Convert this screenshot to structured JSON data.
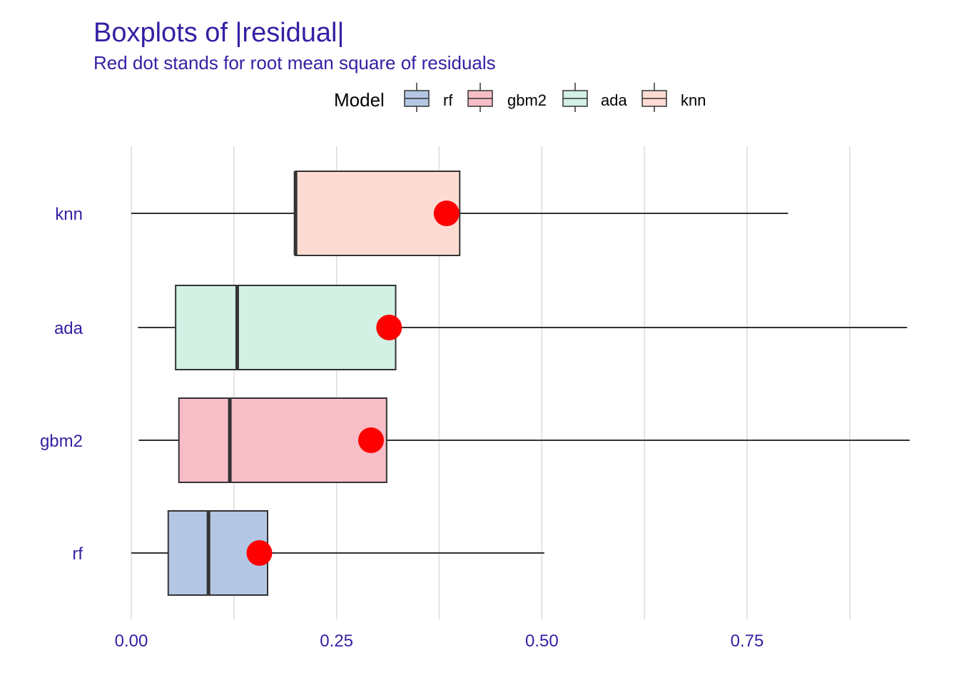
{
  "chart_data": {
    "type": "boxplot",
    "title": "Boxplots of |residual|",
    "subtitle": "Red dot stands for root mean square of residuals",
    "legend": {
      "title": "Model",
      "position": "top",
      "entries": [
        "rf",
        "gbm2",
        "ada",
        "knn"
      ]
    },
    "xlim": [
      -0.03,
      0.96
    ],
    "xticks": [
      0.0,
      0.25,
      0.5,
      0.75
    ],
    "xtick_labels": [
      "0.00",
      "0.25",
      "0.50",
      "0.75"
    ],
    "xminor": [
      0.125,
      0.375,
      0.625,
      0.875
    ],
    "grid": true,
    "categories": [
      "knn",
      "ada",
      "gbm2",
      "rf"
    ],
    "series": [
      {
        "name": "knn",
        "color": "#fddbd2",
        "min": 0.0,
        "q1": 0.2,
        "median": 0.2,
        "q3": 0.4,
        "max": 0.8,
        "rmse": 0.384
      },
      {
        "name": "ada",
        "color": "#d3f0e4",
        "min": 0.008,
        "q1": 0.054,
        "median": 0.129,
        "q3": 0.322,
        "max": 0.945,
        "rmse": 0.314
      },
      {
        "name": "gbm2",
        "color": "#f7bec7",
        "min": 0.009,
        "q1": 0.058,
        "median": 0.12,
        "q3": 0.311,
        "max": 0.948,
        "rmse": 0.292
      },
      {
        "name": "rf",
        "color": "#b3c7e4",
        "min": 0.0,
        "q1": 0.045,
        "median": 0.094,
        "q3": 0.166,
        "max": 0.503,
        "rmse": 0.156
      }
    ],
    "rmse_color": "#ff0000"
  }
}
